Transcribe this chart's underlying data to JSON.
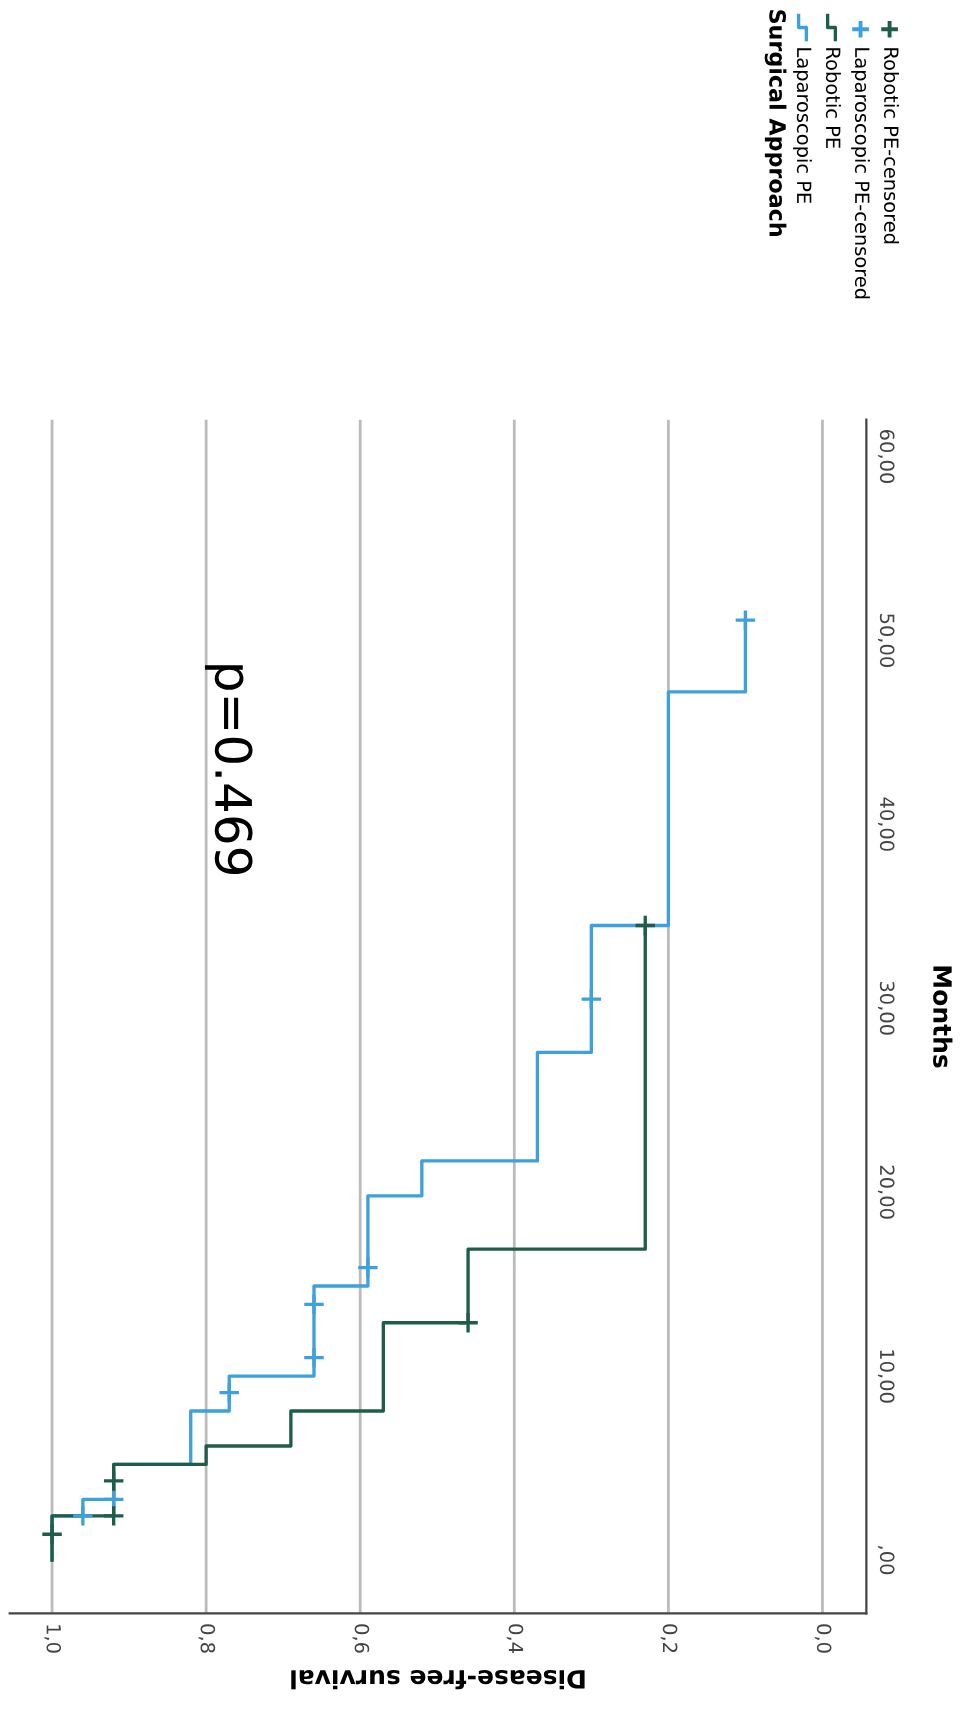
{
  "chart_data": {
    "type": "step",
    "xlabel": "Disease-free survival",
    "ylabel": "Months",
    "legend_title": "Surgical Approach",
    "annotations": [
      "p=0.469"
    ],
    "xlim": [
      1.055,
      -0.057
    ],
    "ylim": [
      -2.9,
      62
    ],
    "xticks": [
      {
        "value": 0.0,
        "label": "0,0"
      },
      {
        "value": 0.2,
        "label": "0,2"
      },
      {
        "value": 0.4,
        "label": "0,4"
      },
      {
        "value": 0.6,
        "label": "0,6"
      },
      {
        "value": 0.8,
        "label": "0,8"
      },
      {
        "value": 1.0,
        "label": "1,0"
      }
    ],
    "yticks": [
      {
        "value": 0,
        "label": ",00"
      },
      {
        "value": 10,
        "label": "10,00"
      },
      {
        "value": 20,
        "label": "20,00"
      },
      {
        "value": 30,
        "label": "30,00"
      },
      {
        "value": 40,
        "label": "40,00"
      },
      {
        "value": 50,
        "label": "50,00"
      },
      {
        "value": 60,
        "label": "60,00"
      }
    ],
    "grid": "x",
    "legend": "top right",
    "series": [
      {
        "name": "Laparoscopic PE",
        "color": "#3ea0dc",
        "x": [
          1.0,
          0.96,
          0.92,
          0.82,
          0.77,
          0.66,
          0.59,
          0.52,
          0.37,
          0.3,
          0.2,
          0.1,
          0.1
        ],
        "values": [
          0,
          2.4,
          3.3,
          5.2,
          8.1,
          10.0,
          14.9,
          19.8,
          21.7,
          27.6,
          34.5,
          47.2,
          51.1
        ]
      },
      {
        "name": "Robotic PE",
        "color": "#1f5c4a",
        "x": [
          1.0,
          0.92,
          0.8,
          0.69,
          0.57,
          0.46,
          0.23,
          0.23
        ],
        "values": [
          0,
          2.4,
          5.2,
          6.2,
          8.1,
          12.9,
          16.9,
          34.5
        ]
      },
      {
        "name": "Laparoscopic PE-censored",
        "type": "scatter",
        "marker": "cross",
        "color": "#3ea0dc",
        "x": [
          0.96,
          0.92,
          0.77,
          0.66,
          0.66,
          0.59,
          0.3,
          0.1
        ],
        "values": [
          2.4,
          3.3,
          9.1,
          11.0,
          13.9,
          15.9,
          30.5,
          51.1
        ]
      },
      {
        "name": "Robotic PE-censored",
        "type": "scatter",
        "marker": "cross",
        "color": "#1f5c4a",
        "x": [
          1.0,
          0.92,
          0.92,
          0.46,
          0.23
        ],
        "values": [
          1.4,
          2.4,
          4.3,
          12.9,
          34.5
        ]
      }
    ]
  }
}
